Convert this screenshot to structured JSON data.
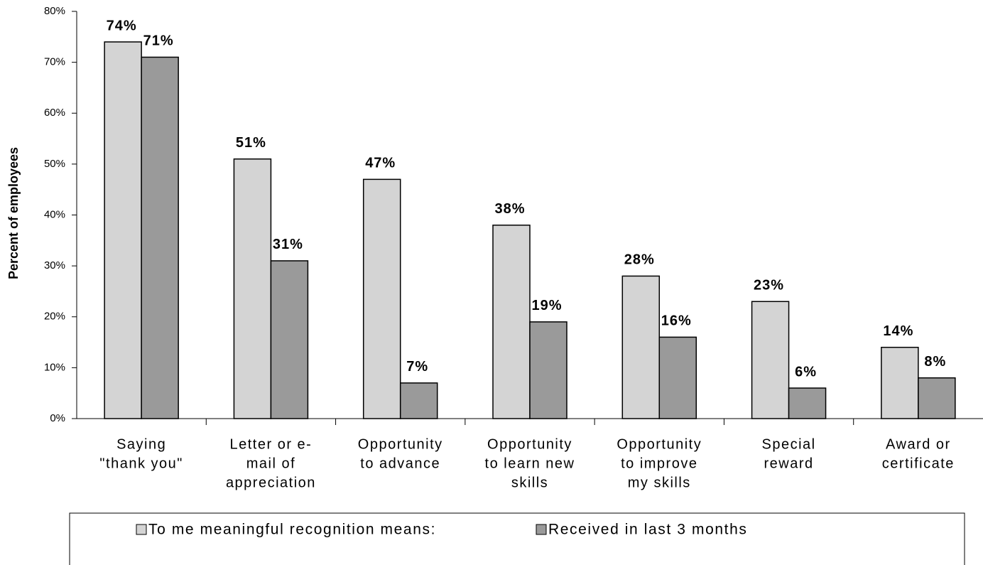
{
  "chart_data": {
    "type": "bar",
    "y_label": "Percent of employees",
    "categories": [
      [
        "Saying",
        "\"thank you\""
      ],
      [
        "Letter or e-",
        "mail of",
        "appreciation"
      ],
      [
        "Opportunity",
        "to advance"
      ],
      [
        "Opportunity",
        "to learn new",
        "skills"
      ],
      [
        "Opportunity",
        "to improve",
        "my skills"
      ],
      [
        "Special",
        "reward"
      ],
      [
        "Award or",
        "certificate"
      ]
    ],
    "series": [
      {
        "name": "To me meaningful recognition means:",
        "color": "#d4d4d4",
        "values": [
          74,
          51,
          47,
          38,
          28,
          23,
          14
        ],
        "value_labels": [
          "74%",
          "51%",
          "47%",
          "38%",
          "28%",
          "23%",
          "14%"
        ]
      },
      {
        "name": "Received in last 3 months",
        "color": "#9a9a9a",
        "values": [
          71,
          31,
          7,
          19,
          16,
          6,
          8
        ],
        "value_labels": [
          "71%",
          "31%",
          "7%",
          "19%",
          "16%",
          "6%",
          "8%"
        ]
      }
    ],
    "ylim": [
      0,
      80
    ],
    "yticks": [
      {
        "value": 0,
        "label": "0%"
      },
      {
        "value": 10,
        "label": "10%"
      },
      {
        "value": 20,
        "label": "20%"
      },
      {
        "value": 30,
        "label": "30%"
      },
      {
        "value": 40,
        "label": "40%"
      },
      {
        "value": 50,
        "label": "50%"
      },
      {
        "value": 60,
        "label": "60%"
      },
      {
        "value": 70,
        "label": "70%"
      },
      {
        "value": 80,
        "label": "80%"
      }
    ],
    "grid": false,
    "legend": "bottom"
  }
}
